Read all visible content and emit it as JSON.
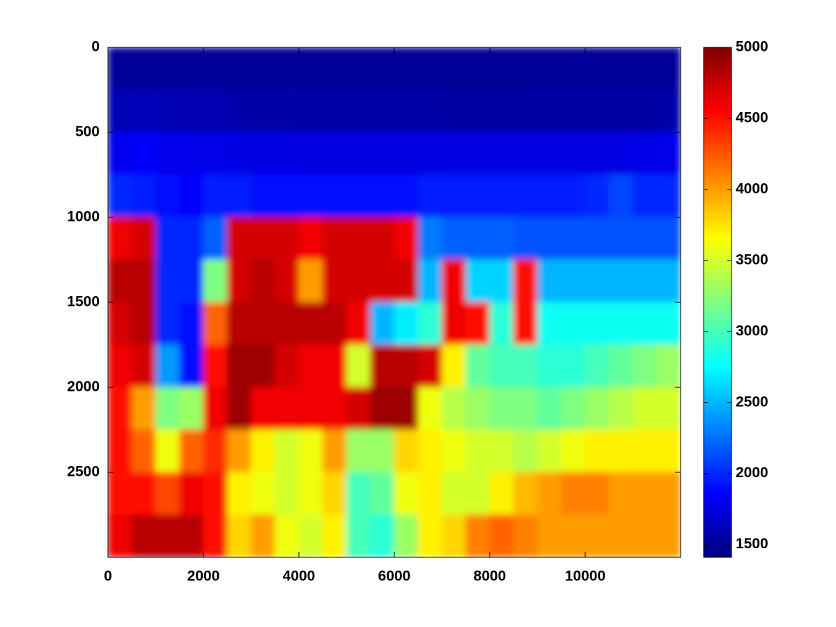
{
  "chart_data": {
    "type": "heatmap",
    "colormap": "jet",
    "x_edges": [
      0,
      500,
      1000,
      1500,
      2000,
      2500,
      3000,
      3500,
      4000,
      4500,
      5000,
      5500,
      6000,
      6500,
      7000,
      7500,
      8000,
      8500,
      9000,
      9500,
      10000,
      10500,
      11000,
      11500,
      12000
    ],
    "y_edges": [
      0,
      250,
      500,
      750,
      1000,
      1250,
      1500,
      1750,
      2000,
      2250,
      2500,
      2750,
      3000
    ],
    "z": [
      [
        1500,
        1500,
        1500,
        1500,
        1500,
        1500,
        1500,
        1500,
        1500,
        1500,
        1500,
        1500,
        1500,
        1500,
        1500,
        1500,
        1500,
        1500,
        1500,
        1500,
        1500,
        1500,
        1500,
        1500
      ],
      [
        1600,
        1620,
        1600,
        1580,
        1580,
        1560,
        1560,
        1560,
        1550,
        1550,
        1550,
        1550,
        1550,
        1550,
        1540,
        1540,
        1540,
        1540,
        1530,
        1530,
        1530,
        1530,
        1540,
        1560
      ],
      [
        1800,
        1850,
        1800,
        1780,
        1780,
        1760,
        1760,
        1760,
        1750,
        1750,
        1750,
        1750,
        1750,
        1750,
        1760,
        1760,
        1760,
        1760,
        1760,
        1760,
        1760,
        1760,
        1770,
        1780
      ],
      [
        2000,
        1950,
        1900,
        1880,
        1950,
        1950,
        1920,
        1900,
        1900,
        1900,
        1900,
        1900,
        1900,
        1950,
        1950,
        1950,
        1950,
        1950,
        1950,
        1950,
        2000,
        2100,
        2000,
        2000
      ],
      [
        4600,
        4700,
        2000,
        2000,
        2200,
        4700,
        4700,
        4700,
        4600,
        4700,
        4700,
        4700,
        4600,
        2300,
        2200,
        2200,
        2200,
        2150,
        2150,
        2150,
        2150,
        2150,
        2150,
        2150
      ],
      [
        4800,
        4800,
        2000,
        2000,
        3200,
        4700,
        4800,
        4700,
        4000,
        4700,
        4700,
        4700,
        4700,
        2500,
        4600,
        2600,
        2600,
        4500,
        2500,
        2500,
        2500,
        2500,
        2500,
        2500
      ],
      [
        4700,
        4800,
        2000,
        1900,
        4200,
        4800,
        4800,
        4800,
        4800,
        4800,
        4600,
        2500,
        2700,
        2900,
        4600,
        4500,
        2900,
        4500,
        2800,
        2800,
        2800,
        2800,
        2800,
        2800
      ],
      [
        4600,
        4700,
        2400,
        1900,
        4500,
        4900,
        4900,
        4700,
        4600,
        4600,
        3500,
        4800,
        4800,
        4700,
        3700,
        3100,
        3000,
        3000,
        2900,
        2900,
        3000,
        3100,
        3200,
        3300
      ],
      [
        4500,
        4000,
        3200,
        3300,
        4600,
        4900,
        4600,
        4600,
        4600,
        4600,
        4700,
        4900,
        4900,
        3600,
        3400,
        3300,
        3200,
        3200,
        3100,
        3200,
        3300,
        3400,
        3500,
        3500
      ],
      [
        4500,
        4200,
        3600,
        4200,
        4400,
        4000,
        3700,
        3500,
        3600,
        4000,
        3300,
        3300,
        3800,
        3700,
        3600,
        3500,
        3500,
        3400,
        3500,
        3600,
        3700,
        3700,
        3700,
        3700
      ],
      [
        4500,
        4500,
        4300,
        4600,
        4500,
        3700,
        3600,
        3500,
        3600,
        3800,
        3000,
        3100,
        3600,
        3700,
        3500,
        3500,
        3700,
        3900,
        4000,
        4100,
        4100,
        4000,
        4000,
        4000
      ],
      [
        4600,
        4800,
        4800,
        4800,
        4500,
        3800,
        4000,
        3600,
        3500,
        3700,
        3000,
        2900,
        3300,
        3700,
        3800,
        4100,
        4200,
        4100,
        4000,
        4000,
        4000,
        4000,
        4000,
        4000
      ]
    ],
    "xlim": [
      0,
      12000
    ],
    "ylim": [
      0,
      3000
    ],
    "y_reversed": true,
    "xticks": [
      0,
      2000,
      4000,
      6000,
      8000,
      10000
    ],
    "yticks": [
      0,
      500,
      1000,
      1500,
      2000,
      2500
    ],
    "clim": [
      1410,
      5000
    ],
    "cticks": [
      1500,
      2000,
      2500,
      3000,
      3500,
      4000,
      4500,
      5000
    ]
  }
}
